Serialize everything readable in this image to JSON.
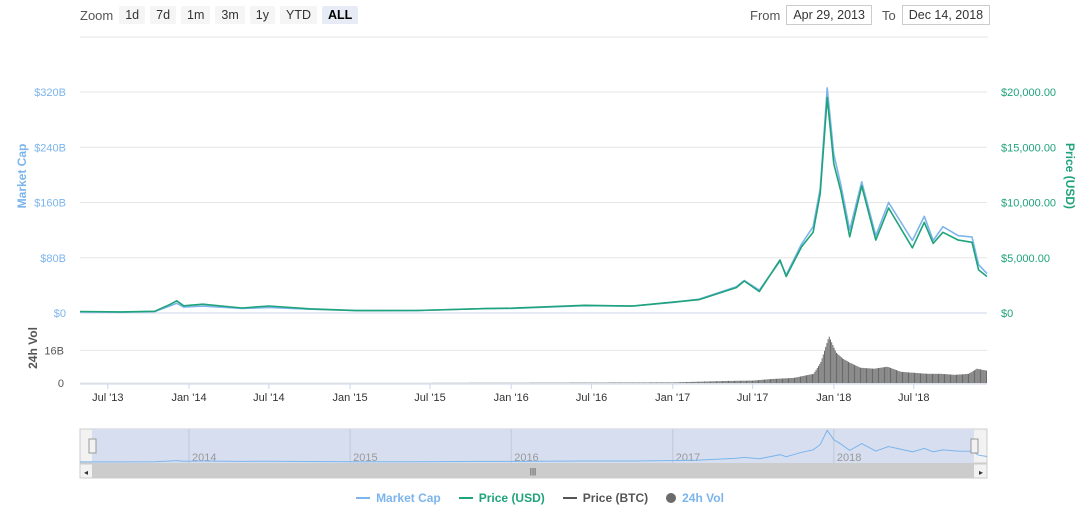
{
  "toolbar": {
    "zoom_label": "Zoom",
    "zoom_buttons": [
      "1d",
      "7d",
      "1m",
      "3m",
      "1y",
      "YTD",
      "ALL"
    ],
    "active_zoom": "ALL",
    "from_label": "From",
    "from_value": "Apr 29, 2013",
    "to_label": "To",
    "to_value": "Dec 14, 2018"
  },
  "colors": {
    "market_cap": "#7cb5ec",
    "price_usd": "#1fa37a",
    "price_btc": "#555555",
    "volume": "#6b6b6b",
    "left_axis": "#7cb5ec",
    "right_axis": "#1fa37a"
  },
  "chart_data": {
    "type": "line",
    "x_ticks": [
      "Jul '13",
      "Jan '14",
      "Jul '14",
      "Jan '15",
      "Jul '15",
      "Jan '16",
      "Jul '16",
      "Jan '17",
      "Jul '17",
      "Jan '18",
      "Jul '18"
    ],
    "x_tick_dates": [
      "2013-07-01",
      "2014-01-01",
      "2014-07-01",
      "2015-01-01",
      "2015-07-01",
      "2016-01-01",
      "2016-07-01",
      "2017-01-01",
      "2017-07-01",
      "2018-01-01",
      "2018-07-01"
    ],
    "xlim": [
      "2013-04-29",
      "2018-12-14"
    ],
    "left_axis": {
      "label": "Market Cap",
      "ticks": [
        "$0",
        "$80B",
        "$160B",
        "$240B",
        "$320B"
      ],
      "tick_values": [
        0,
        80,
        160,
        240,
        320
      ],
      "ylim": [
        0,
        320
      ]
    },
    "right_axis": {
      "label": "Price (USD)",
      "ticks": [
        "$0",
        "$5,000.00",
        "$10,000.00",
        "$15,000.00",
        "$20,000.00"
      ],
      "tick_values": [
        0,
        5000,
        10000,
        15000,
        20000
      ],
      "ylim": [
        0,
        20000
      ]
    },
    "series": [
      {
        "name": "Market Cap",
        "x": [
          "2013-04-29",
          "2013-08-01",
          "2013-10-15",
          "2013-11-20",
          "2013-12-04",
          "2013-12-20",
          "2014-02-01",
          "2014-05-01",
          "2014-07-01",
          "2014-10-01",
          "2015-01-15",
          "2015-06-01",
          "2015-11-05",
          "2016-01-01",
          "2016-06-15",
          "2016-10-01",
          "2017-01-05",
          "2017-03-01",
          "2017-05-25",
          "2017-06-12",
          "2017-07-16",
          "2017-09-01",
          "2017-09-15",
          "2017-10-20",
          "2017-11-15",
          "2017-12-01",
          "2017-12-17",
          "2018-01-01",
          "2018-01-17",
          "2018-02-06",
          "2018-03-05",
          "2018-04-06",
          "2018-05-05",
          "2018-06-28",
          "2018-07-25",
          "2018-08-14",
          "2018-09-05",
          "2018-10-10",
          "2018-11-10",
          "2018-11-25",
          "2018-12-14"
        ],
        "values": [
          1.5,
          1.2,
          2.0,
          10.5,
          14.0,
          8.5,
          10.0,
          6.5,
          8.0,
          5.5,
          3.5,
          3.5,
          6.5,
          6.5,
          10.5,
          10.0,
          15.5,
          20.0,
          38.0,
          47.0,
          33.0,
          75.0,
          55.0,
          100.0,
          125.0,
          180.0,
          326.0,
          230.0,
          185.0,
          120.0,
          190.0,
          112.0,
          160.0,
          105.0,
          140.0,
          105.0,
          125.0,
          112.0,
          110.0,
          70.0,
          57.0
        ]
      },
      {
        "name": "Price (USD)",
        "x": [
          "2013-04-29",
          "2013-08-01",
          "2013-10-15",
          "2013-11-20",
          "2013-12-04",
          "2013-12-20",
          "2014-02-01",
          "2014-05-01",
          "2014-07-01",
          "2014-10-01",
          "2015-01-15",
          "2015-06-01",
          "2015-11-05",
          "2016-01-01",
          "2016-06-15",
          "2016-10-01",
          "2017-01-05",
          "2017-03-01",
          "2017-05-25",
          "2017-06-12",
          "2017-07-16",
          "2017-09-01",
          "2017-09-15",
          "2017-10-20",
          "2017-11-15",
          "2017-12-01",
          "2017-12-17",
          "2018-01-01",
          "2018-01-17",
          "2018-02-06",
          "2018-03-05",
          "2018-04-06",
          "2018-05-05",
          "2018-06-28",
          "2018-07-25",
          "2018-08-14",
          "2018-09-05",
          "2018-10-10",
          "2018-11-10",
          "2018-11-25",
          "2018-12-14"
        ],
        "values": [
          140,
          100,
          150,
          800,
          1100,
          650,
          800,
          450,
          630,
          380,
          220,
          230,
          400,
          430,
          700,
          620,
          1000,
          1200,
          2300,
          2900,
          1950,
          4800,
          3300,
          6000,
          7300,
          10800,
          19500,
          13500,
          11000,
          6900,
          11500,
          6600,
          9500,
          5900,
          8200,
          6300,
          7300,
          6600,
          6400,
          3900,
          3300
        ]
      },
      {
        "name": "Price (BTC)",
        "x": [
          "2013-04-29",
          "2018-12-14"
        ],
        "values": [
          1,
          1
        ]
      }
    ],
    "volume": {
      "label": "24h Vol",
      "name": "24h Vol",
      "ticks": [
        "0",
        "16B"
      ],
      "tick_values": [
        0,
        16
      ],
      "ylim": [
        0,
        26
      ],
      "x": [
        "2013-04-29",
        "2015-01-01",
        "2016-01-01",
        "2017-01-01",
        "2017-05-01",
        "2017-07-01",
        "2017-08-15",
        "2017-10-01",
        "2017-11-15",
        "2017-12-01",
        "2017-12-10",
        "2017-12-20",
        "2018-01-05",
        "2018-01-20",
        "2018-02-05",
        "2018-03-01",
        "2018-04-01",
        "2018-05-01",
        "2018-06-01",
        "2018-07-01",
        "2018-08-01",
        "2018-09-01",
        "2018-10-01",
        "2018-11-01",
        "2018-11-20",
        "2018-12-14"
      ],
      "values": [
        0,
        0,
        0.1,
        0.3,
        1.0,
        1.2,
        2.0,
        2.5,
        4.5,
        10.0,
        16.0,
        23.0,
        15.0,
        12.0,
        10.0,
        7.5,
        7.0,
        8.0,
        5.5,
        5.0,
        4.5,
        4.5,
        4.0,
        4.5,
        7.0,
        6.0
      ]
    },
    "navigator": {
      "labels": [
        "2014",
        "2015",
        "2016",
        "2017",
        "2018"
      ]
    },
    "legend": [
      "Market Cap",
      "Price (USD)",
      "Price (BTC)",
      "24h Vol"
    ]
  }
}
